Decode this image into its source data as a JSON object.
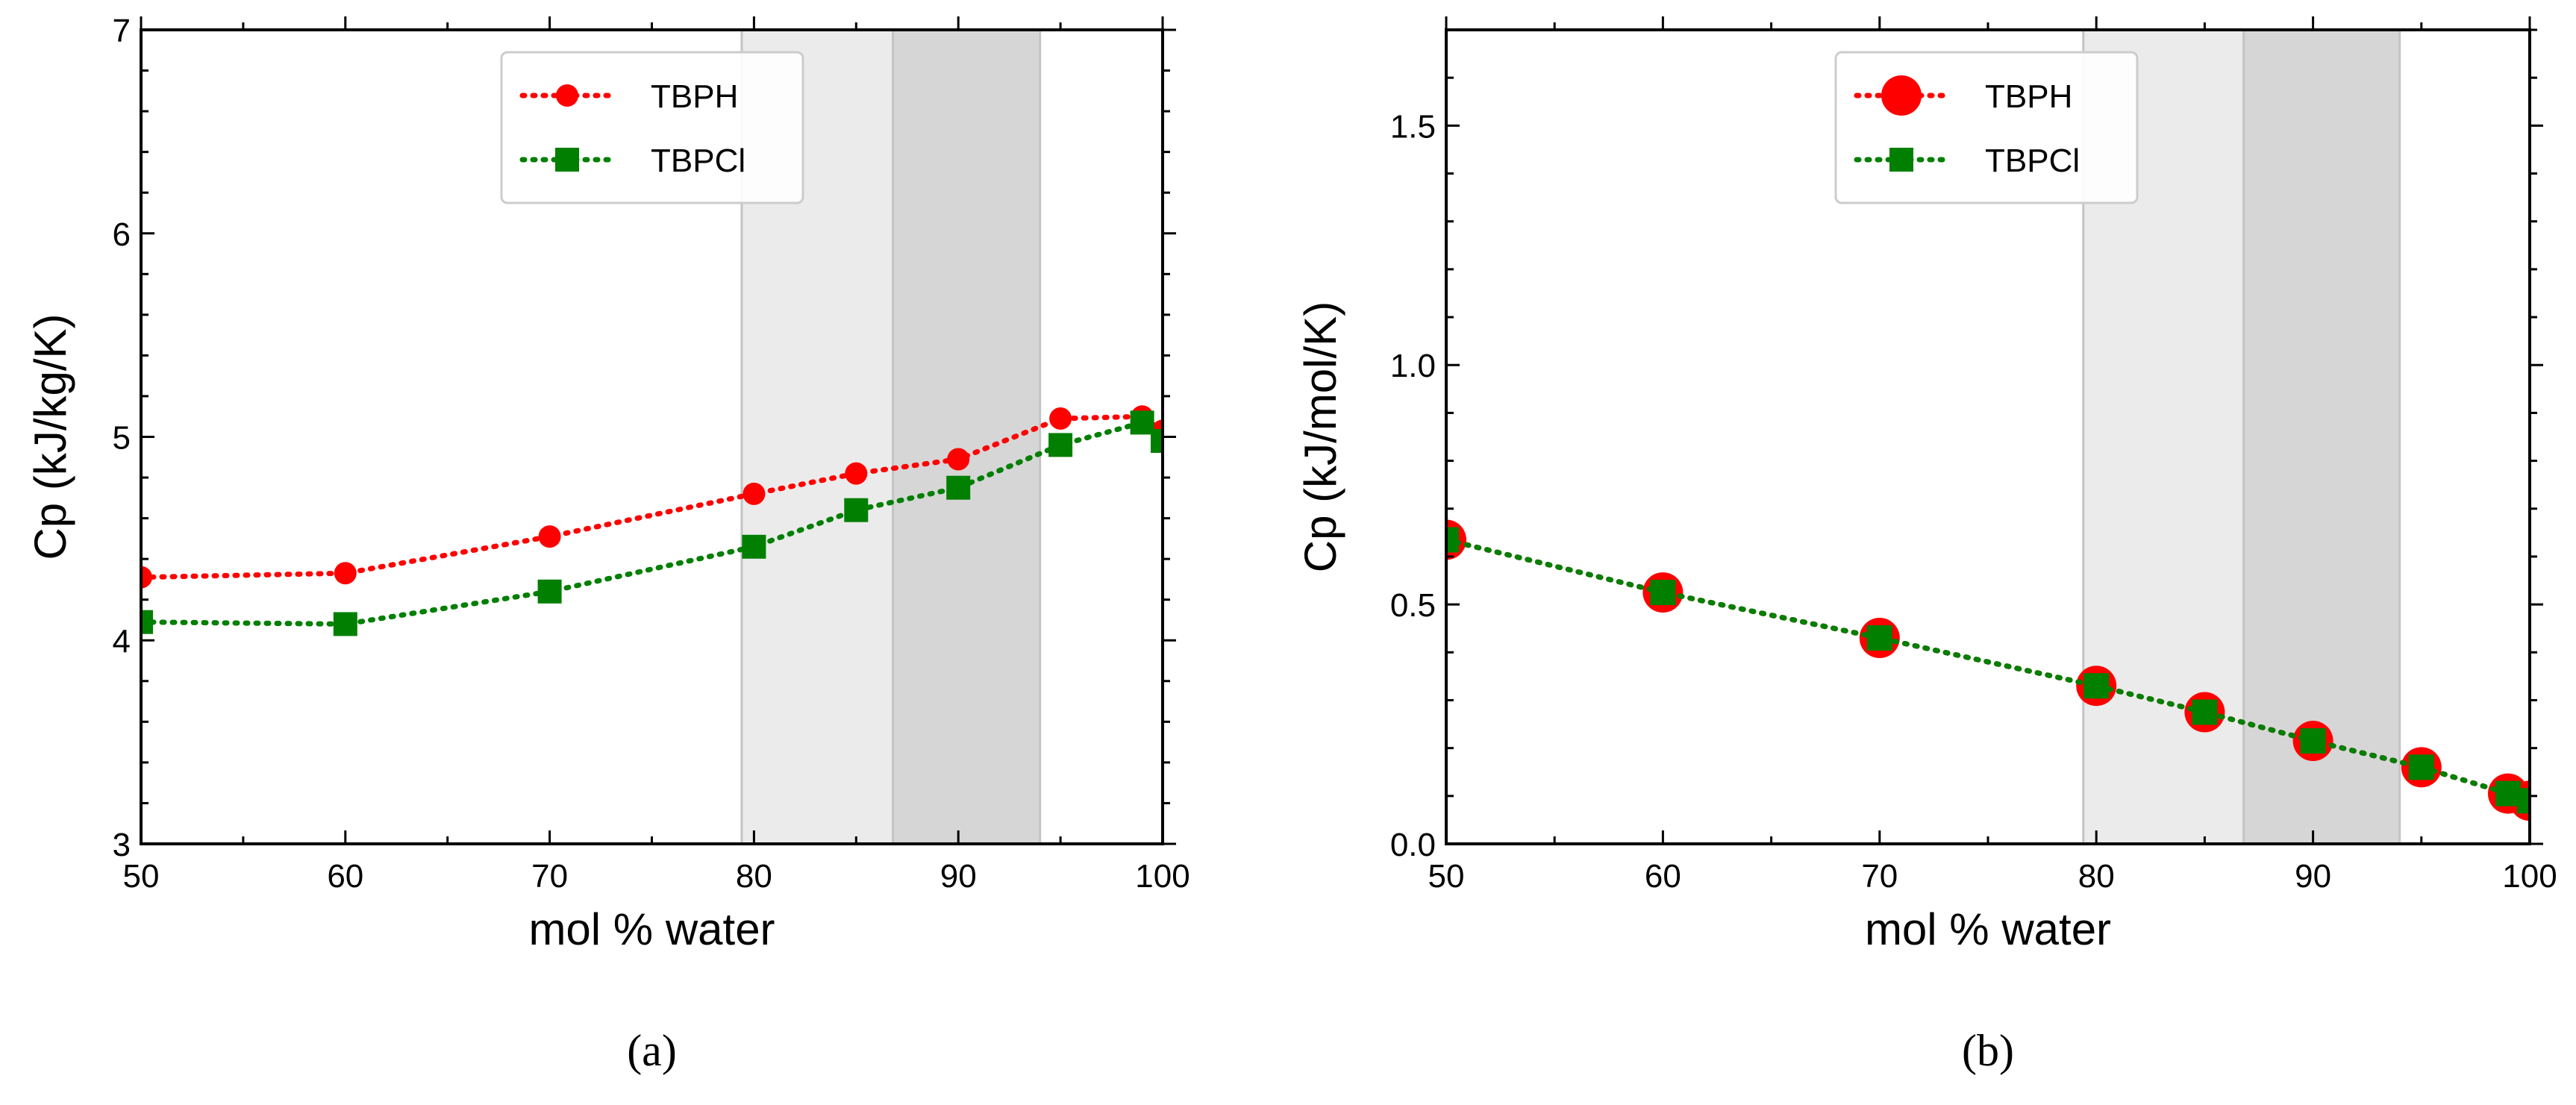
{
  "chart_data": [
    {
      "type": "line",
      "caption": "(a)",
      "xlabel": "mol % water",
      "ylabel": "Cp (kJ/kg/K)",
      "xlim": [
        50,
        100
      ],
      "ylim": [
        3,
        7
      ],
      "xticks": [
        50,
        60,
        70,
        80,
        90,
        100
      ],
      "yticks": [
        3,
        4,
        5,
        6,
        7
      ],
      "grid": false,
      "legend_position": "top-center",
      "shaded_regions": [
        {
          "x": [
            79.4,
            86.8
          ],
          "color": "#ebebeb"
        },
        {
          "x": [
            86.8,
            94.0
          ],
          "color": "#d6d6d6"
        }
      ],
      "series": [
        {
          "name": "TBPH",
          "color": "#ff0000",
          "marker": "circle",
          "x": [
            50,
            60,
            70,
            80,
            85,
            90,
            95,
            99,
            100
          ],
          "y": [
            4.31,
            4.33,
            4.51,
            4.72,
            4.82,
            4.89,
            5.09,
            5.1,
            5.03
          ]
        },
        {
          "name": "TBPCl",
          "color": "#007f00",
          "marker": "square",
          "x": [
            50,
            60,
            70,
            80,
            85,
            90,
            95,
            99,
            100
          ],
          "y": [
            4.09,
            4.08,
            4.24,
            4.46,
            4.64,
            4.75,
            4.96,
            5.07,
            4.98
          ]
        }
      ]
    },
    {
      "type": "line",
      "caption": "(b)",
      "xlabel": "mol % water",
      "ylabel": "Cp (kJ/mol/K)",
      "xlim": [
        50,
        100
      ],
      "ylim": [
        0,
        1.7
      ],
      "xticks": [
        50,
        60,
        70,
        80,
        90,
        100
      ],
      "yticks": [
        0.0,
        0.5,
        1.0,
        1.5
      ],
      "ytick_labels": [
        "0.0",
        "0.5",
        "1.0",
        "1.5"
      ],
      "grid": false,
      "legend_position": "top-center",
      "shaded_regions": [
        {
          "x": [
            79.4,
            86.8
          ],
          "color": "#ebebeb"
        },
        {
          "x": [
            86.8,
            94.0
          ],
          "color": "#d6d6d6"
        }
      ],
      "series": [
        {
          "name": "TBPH",
          "color": "#ff0000",
          "marker": "circle",
          "x": [
            50,
            60,
            70,
            80,
            85,
            90,
            95,
            99,
            100
          ],
          "y": [
            0.635,
            0.525,
            0.43,
            0.33,
            0.275,
            0.215,
            0.16,
            0.105,
            0.09
          ]
        },
        {
          "name": "TBPCl",
          "color": "#007f00",
          "marker": "square",
          "x": [
            50,
            60,
            70,
            80,
            85,
            90,
            95,
            99,
            100
          ],
          "y": [
            0.635,
            0.525,
            0.43,
            0.33,
            0.275,
            0.215,
            0.16,
            0.105,
            0.09
          ]
        }
      ]
    }
  ]
}
